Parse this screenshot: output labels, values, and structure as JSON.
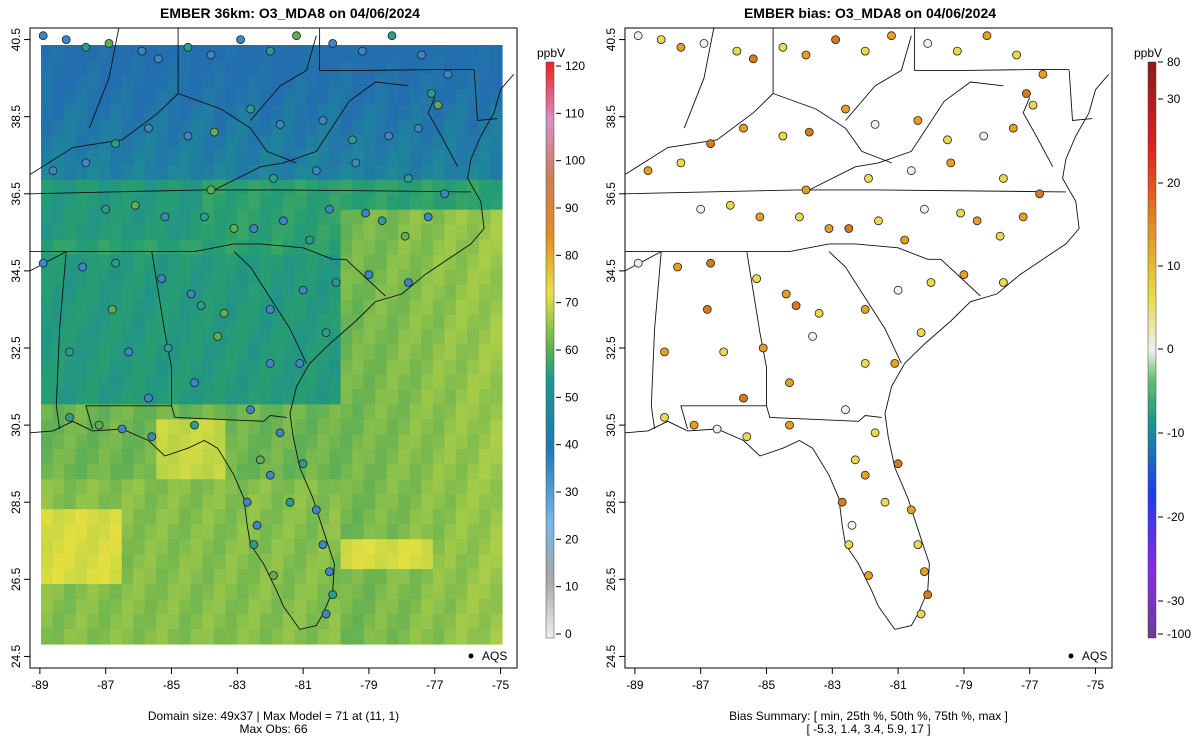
{
  "left_panel": {
    "title": "EMBER 36km: O3_MDA8 on 04/06/2024",
    "footer_line1": "Domain size: 49x37 | Max Model = 71 at (11, 1)",
    "footer_line2": "Max Obs: 66",
    "legend_unit": "ppbV",
    "legend_ticks": [
      "0",
      "10",
      "20",
      "30",
      "40",
      "50",
      "60",
      "70",
      "80",
      "90",
      "100",
      "110",
      "120"
    ],
    "legend_label": "AQS"
  },
  "right_panel": {
    "title": "EMBER bias: O3_MDA8 on 04/06/2024",
    "footer_line1": "Bias Summary: [ min, 25th %, 50th %, 75th %, max ]",
    "footer_line2": "[ -5.3,   1.4,   3.4,   5.9,   17 ]",
    "legend_unit": "ppbV",
    "legend_ticks": [
      "-100",
      "-30",
      "-20",
      "-10",
      "0",
      "10",
      "20",
      "30",
      "80"
    ],
    "legend_label": "AQS"
  },
  "axes": {
    "x_ticks": [
      "-89",
      "-87",
      "-85",
      "-83",
      "-81",
      "-79",
      "-77",
      "-75"
    ],
    "y_ticks": [
      "24.5",
      "26.5",
      "28.5",
      "30.5",
      "32.5",
      "34.5",
      "36.5",
      "38.5",
      "40.5"
    ]
  },
  "colors": {
    "model_high": "#e8e040",
    "model_mid": "#5cb050",
    "model_low": "#1a8a8a",
    "bias_pos": "#e08020",
    "bias_neg": "#1f78b4"
  }
}
